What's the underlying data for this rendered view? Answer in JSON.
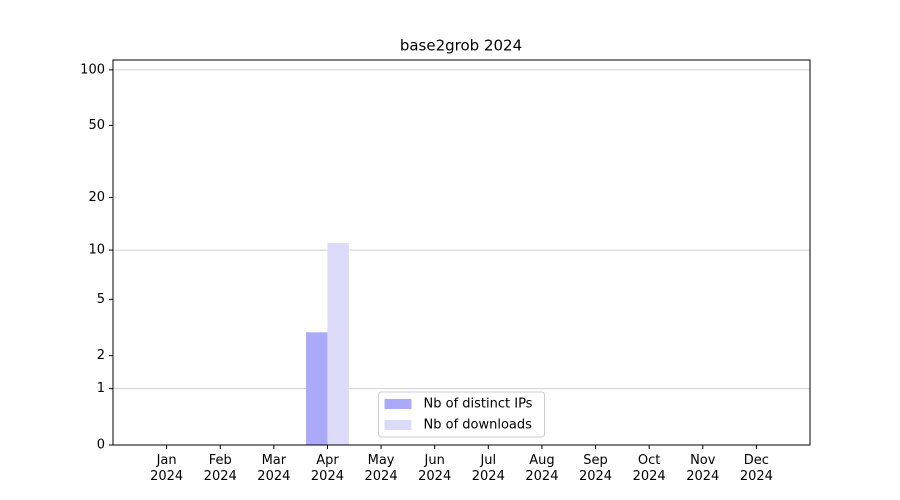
{
  "chart_data": {
    "type": "bar",
    "title": "base2grob 2024",
    "categories": [
      "Jan\n2024",
      "Feb\n2024",
      "Mar\n2024",
      "Apr\n2024",
      "May\n2024",
      "Jun\n2024",
      "Jul\n2024",
      "Aug\n2024",
      "Sep\n2024",
      "Oct\n2024",
      "Nov\n2024",
      "Dec\n2024"
    ],
    "series": [
      {
        "name": "Nb of distinct IPs",
        "color": "#aaaaf8",
        "values": [
          0,
          0,
          0,
          3,
          0,
          0,
          0,
          0,
          0,
          0,
          0,
          0
        ]
      },
      {
        "name": "Nb of downloads",
        "color": "#dcdcfa",
        "values": [
          0,
          0,
          0,
          11,
          0,
          0,
          0,
          0,
          0,
          0,
          0,
          0
        ]
      }
    ],
    "yscale": "log1p",
    "ylim": [
      0,
      113
    ],
    "yticks": [
      0,
      1,
      2,
      5,
      10,
      20,
      50,
      100
    ],
    "grid_yticks": [
      1,
      10,
      100
    ],
    "legend": "lower center"
  }
}
